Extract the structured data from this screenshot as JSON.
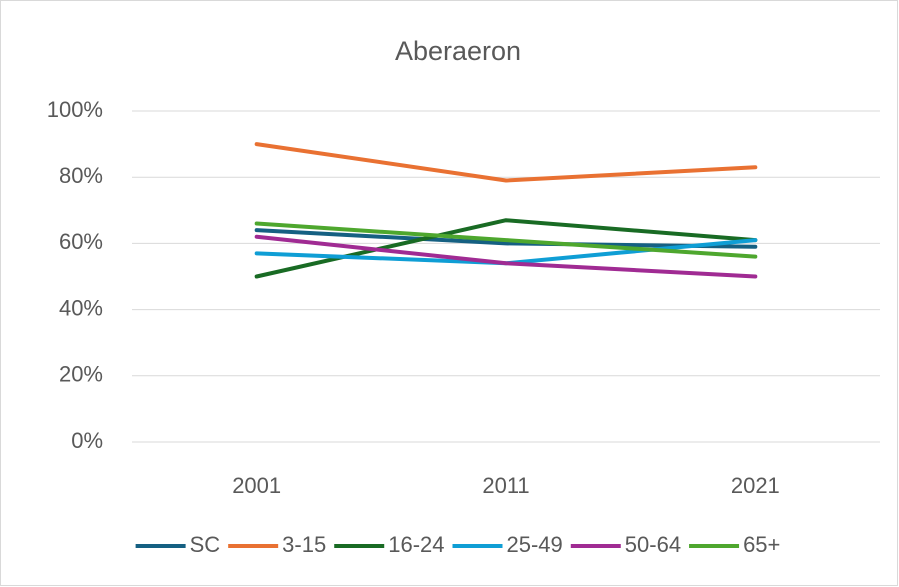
{
  "chart_data": {
    "type": "line",
    "title": "Aberaeron",
    "categories": [
      "2001",
      "2011",
      "2021"
    ],
    "series": [
      {
        "name": "SC",
        "color": "#156082",
        "values": [
          64,
          60,
          59
        ]
      },
      {
        "name": "3-15",
        "color": "#e97132",
        "values": [
          90,
          79,
          83
        ]
      },
      {
        "name": "16-24",
        "color": "#196b24",
        "values": [
          50,
          67,
          61
        ]
      },
      {
        "name": "25-49",
        "color": "#0f9ed5",
        "values": [
          57,
          54,
          61
        ]
      },
      {
        "name": "50-64",
        "color": "#a02b93",
        "values": [
          62,
          54,
          50
        ]
      },
      {
        "name": "65+",
        "color": "#4ea72e",
        "values": [
          66,
          61,
          56
        ]
      }
    ],
    "ylim": [
      0,
      100
    ],
    "yticks": [
      {
        "value": 0,
        "label": "0%"
      },
      {
        "value": 20,
        "label": "20%"
      },
      {
        "value": 40,
        "label": "40%"
      },
      {
        "value": 60,
        "label": "60%"
      },
      {
        "value": 80,
        "label": "80%"
      },
      {
        "value": 100,
        "label": "100%"
      }
    ],
    "grid": true,
    "legend": "bottom"
  }
}
